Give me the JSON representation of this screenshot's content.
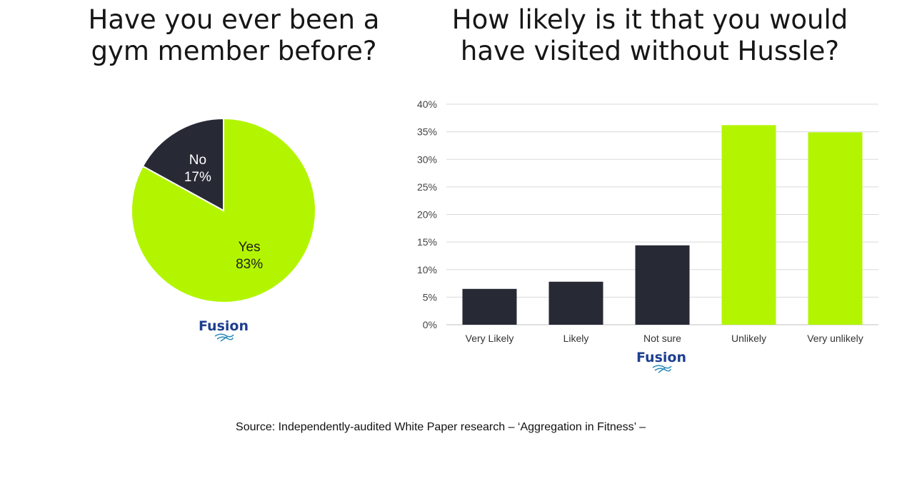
{
  "chart_data": [
    {
      "type": "pie",
      "title": "Have you ever been a gym member before?",
      "slices": [
        {
          "label": "Yes",
          "value": 83,
          "value_label": "83%",
          "color": "#b3f500"
        },
        {
          "label": "No",
          "value": 17,
          "value_label": "17%",
          "color": "#272a35"
        }
      ],
      "logo_text": "Fusion"
    },
    {
      "type": "bar",
      "title": "How likely is it that you would have visited without Hussle?",
      "categories": [
        "Very Likely",
        "Likely",
        "Not sure",
        "Unlikely",
        "Very unlikely"
      ],
      "values": [
        6.5,
        7.8,
        14.4,
        36.2,
        34.9
      ],
      "colors": [
        "#272a35",
        "#272a35",
        "#272a35",
        "#b3f500",
        "#b3f500"
      ],
      "ylim": [
        0,
        40
      ],
      "yticks": [
        "0%",
        "5%",
        "10%",
        "15%",
        "20%",
        "25%",
        "30%",
        "35%",
        "40%"
      ],
      "grid": true,
      "logo_text": "Fusion"
    }
  ],
  "source": "Source:  Independently-audited White Paper research – ‘Aggregation in Fitness’ –",
  "colors": {
    "accent": "#b3f500",
    "dark": "#272a35",
    "logo": "#1d3f8f",
    "gridline": "#d9d9d9"
  }
}
